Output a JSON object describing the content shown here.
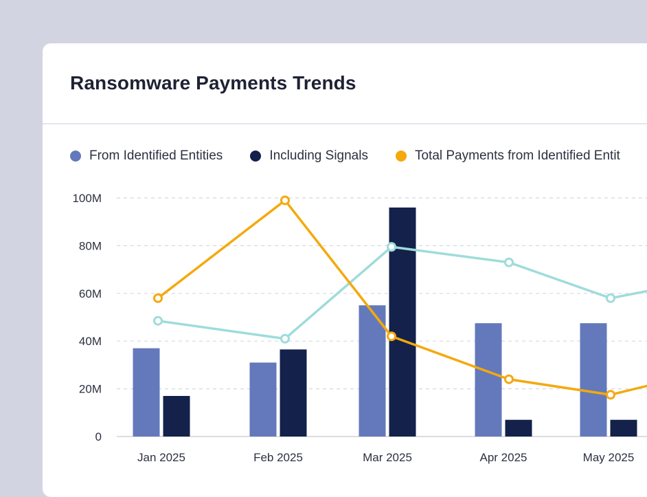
{
  "card": {
    "title": "Ransomware Payments Trends"
  },
  "colors": {
    "from_identified": "#6379bb",
    "including_signals": "#13214b",
    "total_payments": "#f4a90d",
    "teal_series": "#9edcda",
    "grid": "#d6d8de",
    "axis_text": "#2c3040"
  },
  "chart_data": {
    "type": "bar",
    "categories": [
      "Jan 2025",
      "Feb 2025",
      "Mar 2025",
      "Apr 2025",
      "May 2025"
    ],
    "yticks": [
      "0",
      "20M",
      "40M",
      "60M",
      "80M",
      "100M"
    ],
    "ylim": [
      0,
      100
    ],
    "grid": true,
    "legend_position": "top-left",
    "series": [
      {
        "name": "From Identified Entities",
        "kind": "bar",
        "color": "#6379bb",
        "values": [
          37,
          31,
          55,
          47.5,
          47.5
        ]
      },
      {
        "name": "Including Signals",
        "kind": "bar",
        "color": "#13214b",
        "values": [
          17,
          36.5,
          96,
          7,
          7
        ]
      },
      {
        "name": "Total Payments from Identified Entit",
        "kind": "line",
        "color": "#f4a90d",
        "values": [
          58,
          99,
          42,
          24,
          17.5
        ]
      },
      {
        "kind": "line",
        "color": "#9edcda",
        "values": [
          48.5,
          41,
          79.5,
          73,
          58
        ]
      }
    ]
  }
}
